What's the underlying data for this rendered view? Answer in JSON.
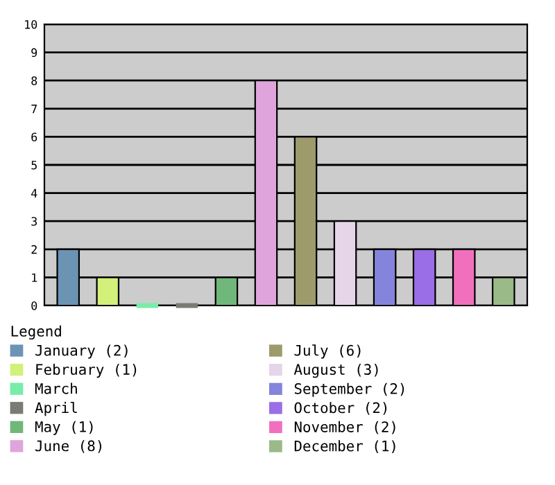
{
  "chart_data": {
    "type": "bar",
    "categories": [
      null,
      null,
      null,
      null,
      null,
      null,
      null,
      null,
      null,
      null,
      null,
      null
    ],
    "series": [
      {
        "name": "January (2)",
        "color": "#6b93b4",
        "values": [
          2,
          null,
          null,
          null,
          null,
          null,
          null,
          null,
          null,
          null,
          null,
          null
        ]
      },
      {
        "name": "February (1)",
        "color": "#d2f07a",
        "values": [
          null,
          1,
          null,
          null,
          null,
          null,
          null,
          null,
          null,
          null,
          null,
          null
        ]
      },
      {
        "name": "March",
        "color": "#78eca8",
        "values": [
          null,
          null,
          0,
          null,
          null,
          null,
          null,
          null,
          null,
          null,
          null,
          null
        ]
      },
      {
        "name": "April",
        "color": "#7b7b73",
        "values": [
          null,
          null,
          null,
          0,
          null,
          null,
          null,
          null,
          null,
          null,
          null,
          null
        ]
      },
      {
        "name": "May (1)",
        "color": "#70b77a",
        "values": [
          null,
          null,
          null,
          null,
          1,
          null,
          null,
          null,
          null,
          null,
          null,
          null
        ]
      },
      {
        "name": "June (8)",
        "color": "#e0a4dc",
        "values": [
          null,
          null,
          null,
          null,
          null,
          8,
          null,
          null,
          null,
          null,
          null,
          null
        ]
      },
      {
        "name": "July (6)",
        "color": "#9d9a6c",
        "values": [
          null,
          null,
          null,
          null,
          null,
          null,
          6,
          null,
          null,
          null,
          null,
          null
        ]
      },
      {
        "name": "August (3)",
        "color": "#e6d4e9",
        "values": [
          null,
          null,
          null,
          null,
          null,
          null,
          null,
          3,
          null,
          null,
          null,
          null
        ]
      },
      {
        "name": "September (2)",
        "color": "#8484dc",
        "values": [
          null,
          null,
          null,
          null,
          null,
          null,
          null,
          null,
          2,
          null,
          null,
          null
        ]
      },
      {
        "name": "October (2)",
        "color": "#9a6ee6",
        "values": [
          null,
          null,
          null,
          null,
          null,
          null,
          null,
          null,
          null,
          2,
          null,
          null
        ]
      },
      {
        "name": "November (2)",
        "color": "#f070be",
        "values": [
          null,
          null,
          null,
          null,
          null,
          null,
          null,
          null,
          null,
          null,
          2,
          null
        ]
      },
      {
        "name": "December (1)",
        "color": "#9aba88",
        "values": [
          null,
          null,
          null,
          null,
          null,
          null,
          null,
          null,
          null,
          null,
          null,
          1
        ]
      }
    ],
    "ylim": [
      0,
      10
    ],
    "yticks": [
      0,
      1,
      2,
      3,
      4,
      5,
      6,
      7,
      8,
      9,
      10
    ],
    "grid": "y",
    "legend": "bottom",
    "legend_title": "Legend",
    "tick_labels": "y"
  }
}
